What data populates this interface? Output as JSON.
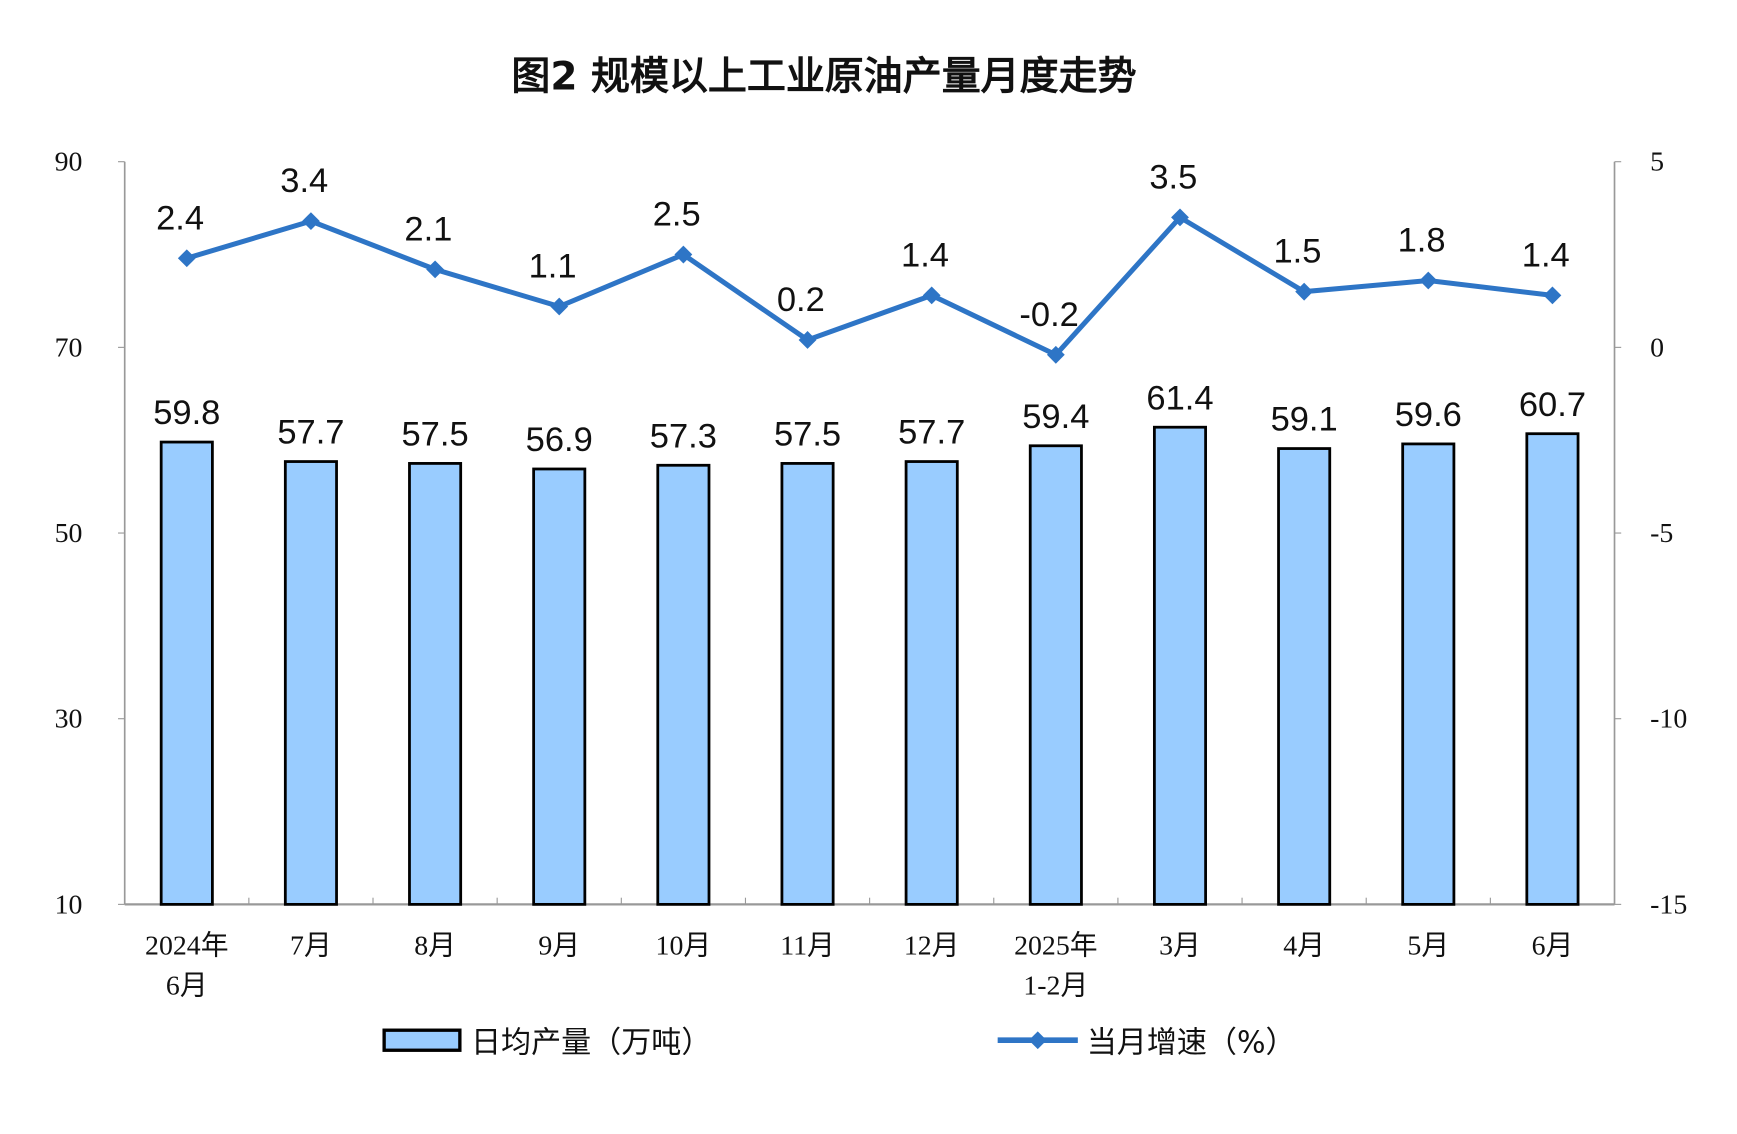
{
  "chart_data": {
    "type": "bar+line",
    "title": "图2  规模以上工业原油产量月度走势",
    "categories": [
      [
        "2024年",
        "6月"
      ],
      [
        "7月"
      ],
      [
        "8月"
      ],
      [
        "9月"
      ],
      [
        "10月"
      ],
      [
        "11月"
      ],
      [
        "12月"
      ],
      [
        "2025年",
        "1-2月"
      ],
      [
        "3月"
      ],
      [
        "4月"
      ],
      [
        "5月"
      ],
      [
        "6月"
      ]
    ],
    "series": [
      {
        "name": "日均产量（万吨）",
        "type": "bar",
        "axis": "left",
        "color": "#99CCFF",
        "values": [
          59.8,
          57.7,
          57.5,
          56.9,
          57.3,
          57.5,
          57.7,
          59.4,
          61.4,
          59.1,
          59.6,
          60.7
        ]
      },
      {
        "name": "当月增速（%）",
        "type": "line",
        "axis": "right",
        "color": "#2E75C6",
        "values": [
          2.4,
          3.4,
          2.1,
          1.1,
          2.5,
          0.2,
          1.4,
          -0.2,
          3.5,
          1.5,
          1.8,
          1.4
        ]
      }
    ],
    "left_axis": {
      "ylim": [
        10,
        90
      ],
      "ticks": [
        10,
        30,
        50,
        70,
        90
      ]
    },
    "right_axis": {
      "ylim": [
        -15,
        5
      ],
      "ticks": [
        -15,
        -10,
        -5,
        0,
        5
      ]
    },
    "grid": false,
    "legend": "bottom"
  }
}
